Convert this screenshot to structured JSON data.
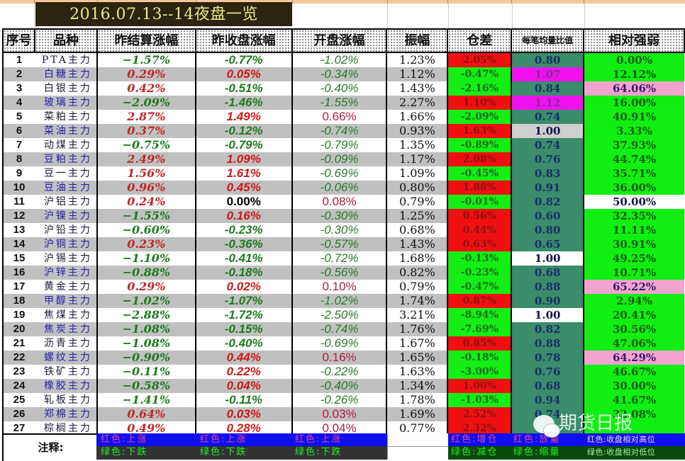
{
  "title": "2016.07.13--14夜盘一览",
  "headers": {
    "idx": "序号",
    "name": "品种",
    "settle_change": "昨结算涨幅",
    "close_change": "昨收盘涨幅",
    "open_change": "开盘涨幅",
    "amplitude": "振幅",
    "oi_change": "仓差",
    "vol_ratio": "每笔均量比值",
    "rel_strength": "相对强弱"
  },
  "rows": [
    {
      "idx": "1",
      "name": "PTA主力",
      "settle": "−1.57%",
      "close": "-0.77%",
      "open": "-1.02%",
      "amp": "1.23%",
      "oi": "2.05%",
      "vr": "0.80",
      "rs": "0.00%"
    },
    {
      "idx": "2",
      "name": "白糖主力",
      "settle": "0.29%",
      "close": "0.05%",
      "open": "-0.34%",
      "amp": "1.12%",
      "oi": "-0.47%",
      "vr": "1.07",
      "rs": "12.12%"
    },
    {
      "idx": "3",
      "name": "白银主力",
      "settle": "0.42%",
      "close": "-0.51%",
      "open": "-0.40%",
      "amp": "1.43%",
      "oi": "-2.16%",
      "vr": "0.84",
      "rs": "64.06%"
    },
    {
      "idx": "4",
      "name": "玻璃主力",
      "settle": "−2.09%",
      "close": "-1.46%",
      "open": "-1.55%",
      "amp": "2.27%",
      "oi": "1.10%",
      "vr": "1.12",
      "rs": "16.00%"
    },
    {
      "idx": "5",
      "name": "菜粕主力",
      "settle": "2.87%",
      "close": "1.49%",
      "open": "0.66%",
      "amp": "1.66%",
      "oi": "-2.09%",
      "vr": "0.74",
      "rs": "40.91%"
    },
    {
      "idx": "6",
      "name": "菜油主力",
      "settle": "0.37%",
      "close": "-0.12%",
      "open": "-0.74%",
      "amp": "0.93%",
      "oi": "1.63%",
      "vr": "1.00",
      "rs": "3.33%"
    },
    {
      "idx": "7",
      "name": "动煤主力",
      "settle": "−0.75%",
      "close": "-0.79%",
      "open": "-0.79%",
      "amp": "1.35%",
      "oi": "-0.89%",
      "vr": "0.74",
      "rs": "37.93%"
    },
    {
      "idx": "8",
      "name": "豆粕主力",
      "settle": "2.49%",
      "close": "1.09%",
      "open": "-0.09%",
      "amp": "1.17%",
      "oi": "2.08%",
      "vr": "0.76",
      "rs": "44.74%"
    },
    {
      "idx": "9",
      "name": "豆一主力",
      "settle": "1.56%",
      "close": "1.61%",
      "open": "-0.69%",
      "amp": "1.09%",
      "oi": "-0.45%",
      "vr": "0.83",
      "rs": "35.71%"
    },
    {
      "idx": "10",
      "name": "豆油主力",
      "settle": "0.96%",
      "close": "0.45%",
      "open": "-0.06%",
      "amp": "0.80%",
      "oi": "1.88%",
      "vr": "0.91",
      "rs": "36.00%"
    },
    {
      "idx": "11",
      "name": "沪铝主力",
      "settle": "0.24%",
      "close": "0.00%",
      "open": "0.08%",
      "amp": "0.79%",
      "oi": "-0.01%",
      "vr": "0.82",
      "rs": "50.00%"
    },
    {
      "idx": "12",
      "name": "沪镍主力",
      "settle": "−1.55%",
      "close": "0.16%",
      "open": "-0.30%",
      "amp": "1.25%",
      "oi": "0.56%",
      "vr": "0.60",
      "rs": "32.35%"
    },
    {
      "idx": "13",
      "name": "沪铅主力",
      "settle": "−0.60%",
      "close": "-0.23%",
      "open": "-0.30%",
      "amp": "0.68%",
      "oi": "0.44%",
      "vr": "0.80",
      "rs": "11.11%"
    },
    {
      "idx": "14",
      "name": "沪铜主力",
      "settle": "0.23%",
      "close": "-0.36%",
      "open": "-0.57%",
      "amp": "1.43%",
      "oi": "0.63%",
      "vr": "0.65",
      "rs": "30.91%"
    },
    {
      "idx": "15",
      "name": "沪锡主力",
      "settle": "−1.10%",
      "close": "-0.41%",
      "open": "-0.72%",
      "amp": "1.68%",
      "oi": "-0.13%",
      "vr": "1.00",
      "rs": "49.25%"
    },
    {
      "idx": "16",
      "name": "沪锌主力",
      "settle": "−0.88%",
      "close": "-0.18%",
      "open": "-0.56%",
      "amp": "0.82%",
      "oi": "-0.23%",
      "vr": "0.68",
      "rs": "10.71%"
    },
    {
      "idx": "17",
      "name": "黄金主力",
      "settle": "0.29%",
      "close": "0.02%",
      "open": "0.10%",
      "amp": "0.79%",
      "oi": "-0.47%",
      "vr": "0.88",
      "rs": "65.22%"
    },
    {
      "idx": "18",
      "name": "甲醇主力",
      "settle": "−1.02%",
      "close": "-1.07%",
      "open": "-1.02%",
      "amp": "1.74%",
      "oi": "0.87%",
      "vr": "0.90",
      "rs": "2.94%"
    },
    {
      "idx": "19",
      "name": "焦煤主力",
      "settle": "−2.88%",
      "close": "-1.72%",
      "open": "-2.50%",
      "amp": "3.21%",
      "oi": "-8.94%",
      "vr": "1.00",
      "rs": "20.41%"
    },
    {
      "idx": "20",
      "name": "焦炭主力",
      "settle": "−1.08%",
      "close": "-0.15%",
      "open": "-0.74%",
      "amp": "1.76%",
      "oi": "-7.69%",
      "vr": "0.82",
      "rs": "30.56%"
    },
    {
      "idx": "21",
      "name": "沥青主力",
      "settle": "−1.08%",
      "close": "-0.40%",
      "open": "-0.69%",
      "amp": "1.67%",
      "oi": "0.85%",
      "vr": "0.88",
      "rs": "47.06%"
    },
    {
      "idx": "22",
      "name": "螺纹主力",
      "settle": "−0.90%",
      "close": "0.44%",
      "open": "0.16%",
      "amp": "1.65%",
      "oi": "-0.18%",
      "vr": "0.78",
      "rs": "64.29%"
    },
    {
      "idx": "23",
      "name": "铁矿主力",
      "settle": "−0.11%",
      "close": "0.22%",
      "open": "-0.22%",
      "amp": "1.63%",
      "oi": "-3.00%",
      "vr": "0.76",
      "rs": "46.67%"
    },
    {
      "idx": "24",
      "name": "橡胶主力",
      "settle": "−0.58%",
      "close": "0.04%",
      "open": "-0.40%",
      "amp": "1.34%",
      "oi": "1.00%",
      "vr": "0.68",
      "rs": "30.00%"
    },
    {
      "idx": "25",
      "name": "轧板主力",
      "settle": "−1.41%",
      "close": "-0.11%",
      "open": "-0.26%",
      "amp": "1.78%",
      "oi": "-1.03%",
      "vr": "0.94",
      "rs": "41.67%"
    },
    {
      "idx": "26",
      "name": "郑棉主力",
      "settle": "0.64%",
      "close": "0.03%",
      "open": "0.03%",
      "amp": "1.69%",
      "oi": "2.52%",
      "vr": "0.74",
      "rs": "32.08%"
    },
    {
      "idx": "27",
      "name": "棕榈主力",
      "settle": "0.49%",
      "close": "0.28%",
      "open": "0.04%",
      "amp": "0.77%",
      "oi": "2.32%",
      "vr": "",
      "rs": ""
    }
  ],
  "styles": {
    "settle_dir": [
      "dn",
      "up",
      "up",
      "dn",
      "up",
      "up",
      "dn",
      "up",
      "up",
      "up",
      "up",
      "dn",
      "dn",
      "up",
      "dn",
      "dn",
      "up",
      "dn",
      "dn",
      "dn",
      "dn",
      "dn",
      "dn",
      "dn",
      "dn",
      "up",
      "up"
    ],
    "close_dir": [
      "dn",
      "up",
      "dn",
      "dn",
      "up",
      "dn",
      "dn",
      "up",
      "up",
      "up",
      "zero",
      "up",
      "dn",
      "dn",
      "dn",
      "dn",
      "up",
      "dn",
      "dn",
      "dn",
      "dn",
      "up",
      "up",
      "up",
      "dn",
      "up",
      "up"
    ],
    "open_dir": [
      "dn",
      "dn",
      "dn",
      "dn",
      "up",
      "dn",
      "dn",
      "dn",
      "dn",
      "dn",
      "up",
      "dn",
      "dn",
      "dn",
      "dn",
      "dn",
      "up",
      "dn",
      "dn",
      "dn",
      "dn",
      "up",
      "dn",
      "dn",
      "dn",
      "up",
      "up"
    ],
    "oi_color": [
      "red",
      "green",
      "green",
      "red",
      "green",
      "red",
      "green",
      "red",
      "green",
      "red",
      "green",
      "red",
      "red",
      "red",
      "green",
      "green",
      "green",
      "red",
      "green",
      "green",
      "red",
      "green",
      "green",
      "red",
      "green",
      "red",
      "red"
    ],
    "vr_color": [
      "teal",
      "magenta",
      "teal",
      "magenta",
      "teal",
      "gray",
      "teal",
      "teal",
      "teal",
      "teal",
      "teal",
      "teal",
      "teal",
      "teal",
      "white",
      "teal",
      "teal",
      "teal",
      "white",
      "teal",
      "teal",
      "teal",
      "teal",
      "teal",
      "teal",
      "teal",
      "teal"
    ],
    "rs_color": [
      "green",
      "green",
      "pink",
      "green",
      "green",
      "green",
      "green",
      "green",
      "green",
      "green",
      "white",
      "green",
      "green",
      "green",
      "green",
      "green",
      "pink",
      "green",
      "green",
      "green",
      "green",
      "pink",
      "green",
      "green",
      "green",
      "green",
      "green"
    ]
  },
  "colors": {
    "up": "#d01818",
    "down": "#1f7a1f",
    "oi_red": "#f01010",
    "oi_green": "#14ee14",
    "vr_teal": "#3a8c6a",
    "vr_magenta": "#ee11ee",
    "rs_green": "#11ee11",
    "rs_pink": "#f3a3cf",
    "title_bg": "#2b2410",
    "title_fg": "#e8e88a"
  },
  "notes": {
    "label": "注释:",
    "settle_up": "红色:上涨",
    "settle_down": "绿色:下跌",
    "close_up": "红色:上涨",
    "close_down": "绿色:下跌",
    "open_up": "红色:上涨",
    "open_down": "绿色:下跌",
    "oi_up": "红色:增仓",
    "oi_down": "绿色:减仓",
    "vr_up": "红色:放量",
    "vr_down": "绿色:缩量",
    "rs_up": "红色:收盘相对高位",
    "rs_down": "绿色:收盘相对低位"
  },
  "watermark": "期货日报"
}
